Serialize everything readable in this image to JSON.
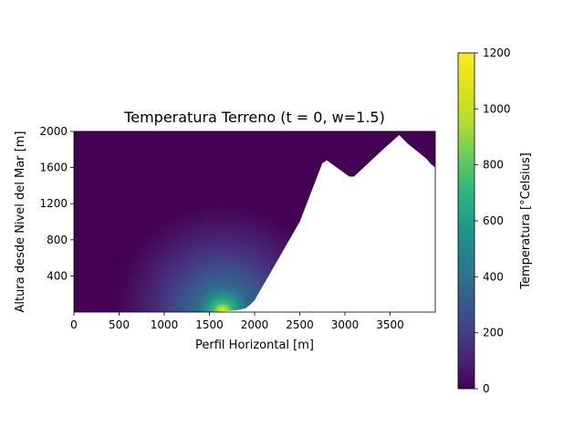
{
  "chart_data": {
    "type": "heatmap",
    "title": "Temperatura Terreno (t = 0, w=1.5)",
    "xlabel": "Perfil Horizontal [m]",
    "ylabel": "Altura desde Nivel del Mar [m]",
    "xlim": [
      0,
      4000
    ],
    "ylim": [
      0,
      2000
    ],
    "xticks": [
      0,
      500,
      1000,
      1500,
      2000,
      2500,
      3000,
      3500
    ],
    "yticks": [
      400,
      800,
      1200,
      1600,
      2000
    ],
    "colormap": "viridis",
    "colorbar": {
      "label": "Temperatura [°Celsius]",
      "range": [
        0,
        1200
      ],
      "ticks": [
        0,
        200,
        400,
        600,
        800,
        1000,
        1200
      ]
    },
    "heat_source": {
      "x": 1650,
      "y": 0,
      "peak": 1200,
      "background": 0
    },
    "terrain_profile": {
      "x": [
        0,
        1550,
        1600,
        1800,
        1900,
        1950,
        2000,
        2500,
        2750,
        2800,
        3050,
        3100,
        3400,
        3580,
        3600,
        3700,
        3800,
        3900,
        3950,
        4000
      ],
      "y": [
        0,
        0,
        0,
        20,
        40,
        80,
        130,
        1000,
        1650,
        1680,
        1500,
        1500,
        1780,
        1940,
        1960,
        1860,
        1780,
        1700,
        1640,
        1600
      ]
    }
  }
}
